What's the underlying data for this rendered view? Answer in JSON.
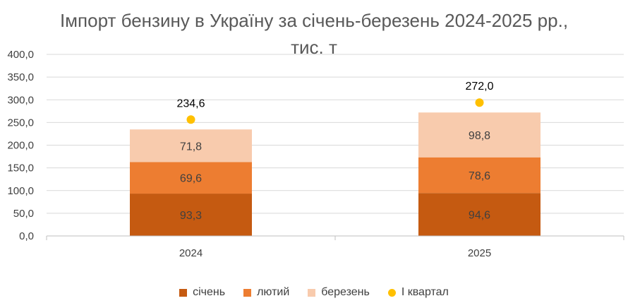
{
  "chart_data": {
    "type": "bar",
    "stacked": true,
    "title": "Імпорт бензину в Україну за січень-березень 2024-2025 рр.,",
    "subtitle": "тис. т",
    "categories": [
      "2024",
      "2025"
    ],
    "series": [
      {
        "name": "січень",
        "values": [
          93.3,
          94.6
        ],
        "labels": [
          "93,3",
          "94,6"
        ],
        "color": "#C55A11"
      },
      {
        "name": "лютий",
        "values": [
          69.6,
          78.6
        ],
        "labels": [
          "69,6",
          "78,6"
        ],
        "color": "#ED7D31"
      },
      {
        "name": "березень",
        "values": [
          71.8,
          98.8
        ],
        "labels": [
          "71,8",
          "98,8"
        ],
        "color": "#F8CBAD"
      }
    ],
    "totals": {
      "name": "І квартал",
      "values": [
        234.6,
        272.0
      ],
      "labels": [
        "234,6",
        "272,0"
      ],
      "color": "#FFC000",
      "type": "scatter"
    },
    "ylim": [
      0,
      400
    ],
    "yticks": [
      0,
      50,
      100,
      150,
      200,
      250,
      300,
      350,
      400
    ],
    "ytick_labels": [
      "0,0",
      "50,0",
      "100,0",
      "150,0",
      "200,0",
      "250,0",
      "300,0",
      "350,0",
      "400,0"
    ],
    "grid": true,
    "legend_position": "bottom"
  }
}
